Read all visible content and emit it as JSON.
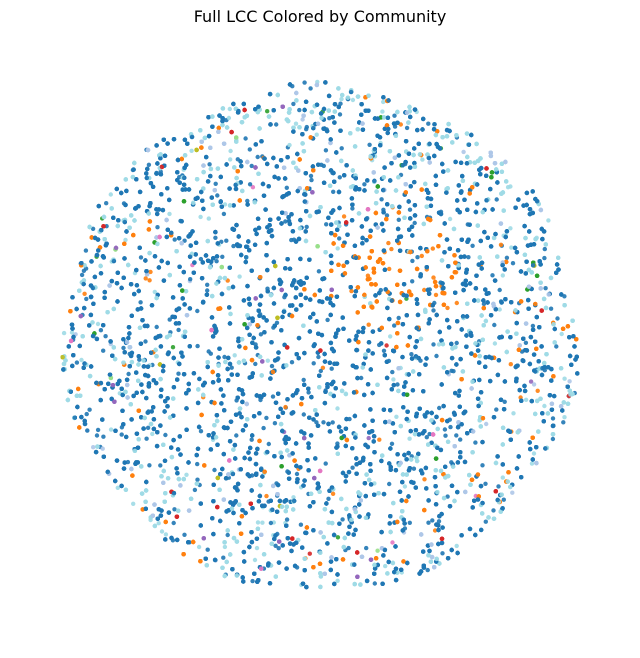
{
  "chart_data": {
    "type": "scatter",
    "title": "Full LCC Colored by Community",
    "axes_visible": false,
    "grid": false,
    "legend": "none",
    "colors": {
      "community_main": "#1f77b4",
      "community_second": "#ff7f0e",
      "community_light": "#9edae5",
      "community_light_alt": "#aec7e8",
      "community_green": "#2ca02c",
      "community_red": "#d62728",
      "community_purple": "#9467bd",
      "community_pink": "#e377c2",
      "community_olive": "#bcbd22",
      "community_lightgreen": "#98df8a"
    },
    "communities": [
      {
        "color_key": "community_main",
        "share": 0.62
      },
      {
        "color_key": "community_second",
        "share": 0.13
      },
      {
        "color_key": "community_light",
        "share": 0.18
      },
      {
        "color_key": "community_light_alt",
        "share": 0.03
      },
      {
        "color_key": "community_green",
        "share": 0.01
      },
      {
        "color_key": "community_red",
        "share": 0.008
      },
      {
        "color_key": "community_purple",
        "share": 0.007
      },
      {
        "color_key": "community_pink",
        "share": 0.005
      },
      {
        "color_key": "community_olive",
        "share": 0.005
      },
      {
        "color_key": "community_lightgreen",
        "share": 0.005
      }
    ]
  }
}
